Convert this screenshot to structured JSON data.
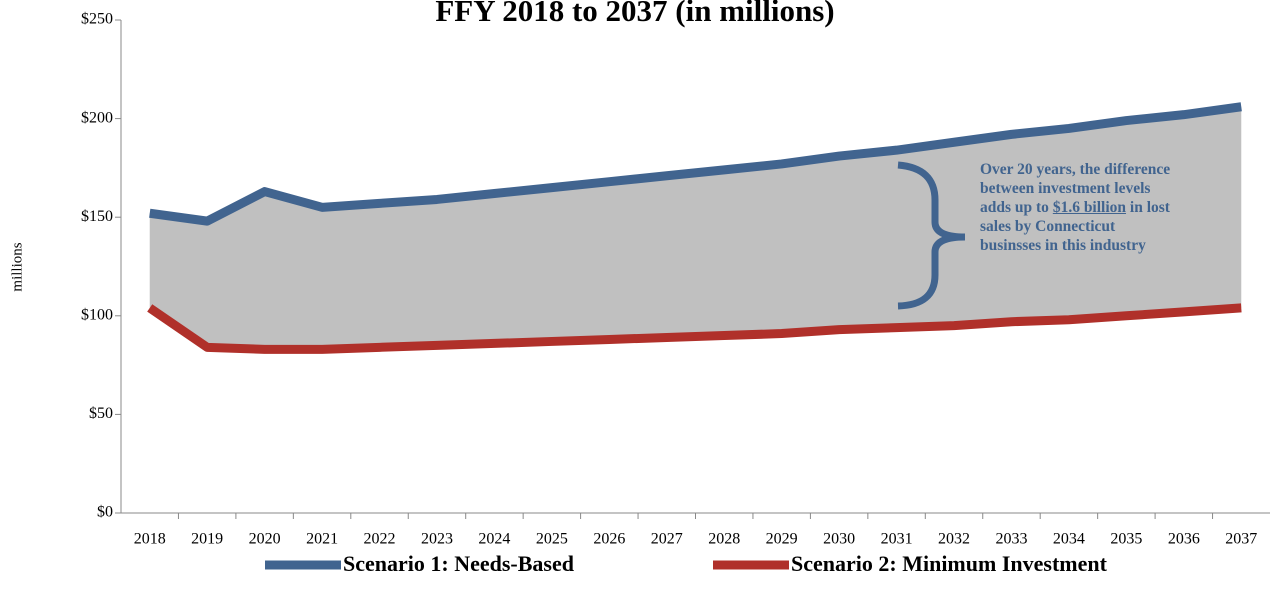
{
  "chart_data": {
    "type": "line",
    "title": "FFY 2018 to 2037 (in millions)",
    "ylabel": "millions",
    "categories": [
      "2018",
      "2019",
      "2020",
      "2021",
      "2022",
      "2023",
      "2024",
      "2025",
      "2026",
      "2027",
      "2028",
      "2029",
      "2030",
      "2031",
      "2032",
      "2033",
      "2034",
      "2035",
      "2036",
      "2037"
    ],
    "series": [
      {
        "name": "Scenario 1: Needs-Based",
        "color": "#41648f",
        "values": [
          152,
          148,
          163,
          155,
          157,
          159,
          162,
          165,
          168,
          171,
          174,
          177,
          181,
          184,
          188,
          192,
          195,
          199,
          202,
          206
        ]
      },
      {
        "name": "Scenario 2: Minimum Investment",
        "color": "#b0302a",
        "values": [
          104,
          84,
          83,
          83,
          84,
          85,
          86,
          87,
          88,
          89,
          90,
          91,
          93,
          94,
          95,
          97,
          98,
          100,
          102,
          104
        ]
      }
    ],
    "fill_between_color": "#c0c0c0",
    "ylim": [
      0,
      250
    ],
    "yticks": [
      {
        "value": 0,
        "label": "$0"
      },
      {
        "value": 50,
        "label": "$50"
      },
      {
        "value": 100,
        "label": "$100"
      },
      {
        "value": 150,
        "label": "$150"
      },
      {
        "value": 200,
        "label": "$200"
      },
      {
        "value": 250,
        "label": "$250"
      }
    ],
    "annotation": {
      "lines": [
        [
          "Over 20 years, the difference"
        ],
        [
          "between investment levels"
        ],
        [
          "adds up to ",
          "$1.6 billion",
          " in lost"
        ],
        [
          "sales by Connecticut"
        ],
        [
          "businsses in this industry"
        ]
      ]
    },
    "legend": "bottom"
  }
}
